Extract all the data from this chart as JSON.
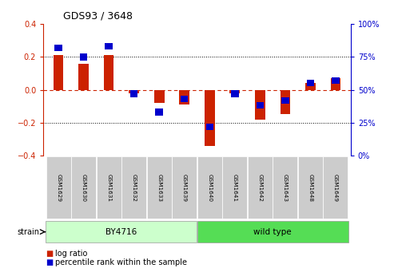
{
  "title": "GDS93 / 3648",
  "samples": [
    "GSM1629",
    "GSM1630",
    "GSM1631",
    "GSM1632",
    "GSM1633",
    "GSM1639",
    "GSM1640",
    "GSM1641",
    "GSM1642",
    "GSM1643",
    "GSM1648",
    "GSM1649"
  ],
  "log_ratio": [
    0.21,
    0.16,
    0.21,
    -0.02,
    -0.08,
    -0.09,
    -0.34,
    -0.02,
    -0.18,
    -0.15,
    0.04,
    0.07
  ],
  "percentile_rank": [
    82,
    75,
    83,
    47,
    33,
    43,
    22,
    47,
    38,
    42,
    55,
    57
  ],
  "bar_color_red": "#cc2200",
  "bar_color_blue": "#0000cc",
  "ylim_left": [
    -0.4,
    0.4
  ],
  "ylim_right": [
    0,
    100
  ],
  "yticks_left": [
    -0.4,
    -0.2,
    0.0,
    0.2,
    0.4
  ],
  "yticks_right": [
    0,
    25,
    50,
    75,
    100
  ],
  "hlines_dotted": [
    0.2,
    -0.2
  ],
  "legend_red_label": "log ratio",
  "legend_blue_label": "percentile rank within the sample",
  "strain_label": "strain",
  "bar_width": 0.4,
  "tick_label_bg": "#cccccc",
  "by4716_color": "#ccffcc",
  "wildtype_color": "#55dd55",
  "n_by4716": 6,
  "n_wildtype": 6
}
